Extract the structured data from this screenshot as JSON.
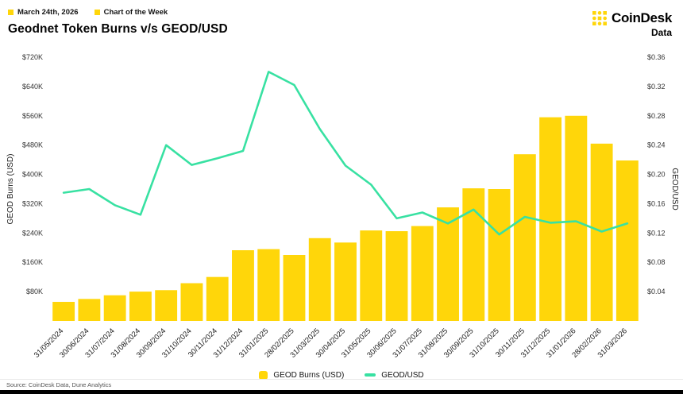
{
  "header": {
    "date_label": "March 24th, 2026",
    "series_label": "Chart of the Week",
    "title": "Geodnet Token Burns v/s GEOD/USD",
    "brand": {
      "name": "CoinDesk",
      "sub": "Data"
    }
  },
  "colors": {
    "yellow": "#FFD60A",
    "green": "#38E1A2",
    "text": "#141414"
  },
  "chart_data": {
    "type": "bar+line",
    "categories": [
      "31/05/2024",
      "30/06/2024",
      "31/07/2024",
      "31/08/2024",
      "30/09/2024",
      "31/10/2024",
      "30/11/2024",
      "31/12/2024",
      "31/01/2025",
      "28/02/2025",
      "31/03/2025",
      "30/04/2025",
      "31/05/2025",
      "30/06/2025",
      "31/07/2025",
      "31/08/2025",
      "30/09/2025",
      "31/10/2025",
      "30/11/2025",
      "31/12/2025",
      "31/01/2026",
      "28/02/2026",
      "31/03/2026"
    ],
    "series": [
      {
        "name": "GEOD Burns (USD)",
        "type": "bar",
        "axis": "left",
        "color": "#FFD60A",
        "values": [
          52000,
          60000,
          70000,
          80000,
          84000,
          103000,
          120000,
          193000,
          196000,
          180000,
          226000,
          214000,
          247000,
          245000,
          259000,
          310000,
          362000,
          360000,
          455000,
          556000,
          560000,
          484000,
          438000
        ]
      },
      {
        "name": "GEOD/USD",
        "type": "line",
        "axis": "right",
        "color": "#38E1A2",
        "values": [
          0.175,
          0.18,
          0.158,
          0.145,
          0.24,
          0.213,
          0.222,
          0.232,
          0.34,
          0.322,
          0.262,
          0.212,
          0.186,
          0.14,
          0.148,
          0.133,
          0.152,
          0.118,
          0.142,
          0.134,
          0.136,
          0.122,
          0.133
        ]
      }
    ],
    "left_axis": {
      "label": "GEOD Burns (USD)",
      "min": 0,
      "max": 720000,
      "tick_step": 80000,
      "tick_labels_top_to_bottom": [
        "$720K",
        "$640K",
        "$560K",
        "$480K",
        "$400K",
        "$320K",
        "$240K",
        "$160K",
        "$80K"
      ]
    },
    "right_axis": {
      "label": "GEOD/USD",
      "min": 0,
      "max": 0.36,
      "tick_step": 0.04,
      "tick_labels_top_to_bottom": [
        "$0.36",
        "$0.32",
        "$0.28",
        "$0.24",
        "$0.20",
        "$0.16",
        "$0.12",
        "$0.08",
        "$0.04"
      ]
    },
    "legend": [
      {
        "label": "GEOD Burns (USD)",
        "color": "#FFD60A",
        "marker": "bar"
      },
      {
        "label": "GEOD/USD",
        "color": "#38E1A2",
        "marker": "line"
      }
    ],
    "grid": false,
    "legend_position": "bottom-center"
  },
  "footer": {
    "source": "Source: CoinDesk Data, Dune Analytics"
  }
}
